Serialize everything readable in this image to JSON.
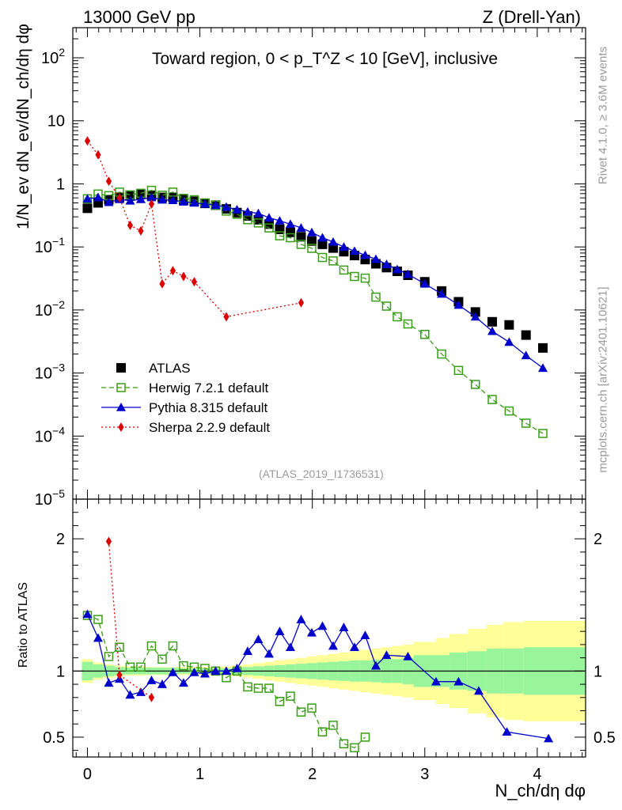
{
  "header": {
    "energy_label": "13000 GeV pp",
    "process_label": "Z (Drell-Yan)",
    "rivet_label": "Rivet 4.1.0, ≥ 3.6M events",
    "site_label": "mcplots.cern.ch [arXiv:2401.10621]",
    "analysis_label": "(ATLAS_2019_I1736531)"
  },
  "chart_data": [
    {
      "type": "scatter",
      "scale": "log",
      "title": "Toward region, 0 < p_T^Z < 10 [GeV], inclusive",
      "ylabel": "1/N_ev dN_ev/dN_ch/dη dφ",
      "xlabel": "",
      "xlim": [
        -0.13,
        4.43
      ],
      "ylim": [
        1e-05,
        300
      ],
      "x_ticks": [
        0,
        1,
        2,
        3,
        4
      ],
      "y_tick_labels": [
        "10^-5",
        "10^-4",
        "10^-3",
        "10^-2",
        "10^-1",
        "1",
        "10",
        "10^2"
      ],
      "legend_position": "left",
      "series": [
        {
          "name": "ATLAS",
          "color": "#000000",
          "marker": "square-filled",
          "x": [
            0,
            0.095,
            0.19,
            0.285,
            0.38,
            0.475,
            0.57,
            0.665,
            0.76,
            0.855,
            0.95,
            1.045,
            1.14,
            1.235,
            1.33,
            1.425,
            1.52,
            1.615,
            1.71,
            1.805,
            1.9,
            1.995,
            2.09,
            2.185,
            2.28,
            2.375,
            2.47,
            2.565,
            2.66,
            2.755,
            2.85,
            3.0,
            3.15,
            3.3,
            3.45,
            3.6,
            3.75,
            3.9,
            4.05
          ],
          "y": [
            0.41,
            0.5,
            0.56,
            0.61,
            0.66,
            0.68,
            0.66,
            0.61,
            0.61,
            0.56,
            0.53,
            0.49,
            0.46,
            0.4,
            0.35,
            0.31,
            0.27,
            0.23,
            0.19,
            0.17,
            0.145,
            0.124,
            0.11,
            0.096,
            0.084,
            0.073,
            0.063,
            0.054,
            0.047,
            0.041,
            0.0355,
            0.028,
            0.02,
            0.0135,
            0.0093,
            0.0065,
            0.0058,
            0.004,
            0.0025
          ]
        },
        {
          "name": "Herwig 7.2.1 default",
          "color": "#3a9c16",
          "marker": "square-open",
          "line": "dashed",
          "x": [
            0,
            0.095,
            0.19,
            0.285,
            0.38,
            0.475,
            0.57,
            0.665,
            0.76,
            0.855,
            0.95,
            1.045,
            1.14,
            1.235,
            1.33,
            1.425,
            1.52,
            1.615,
            1.71,
            1.805,
            1.9,
            1.995,
            2.09,
            2.185,
            2.28,
            2.375,
            2.47,
            2.565,
            2.66,
            2.755,
            2.85,
            3.0,
            3.15,
            3.3,
            3.45,
            3.6,
            3.75,
            3.9,
            4.05
          ],
          "y": [
            0.58,
            0.69,
            0.65,
            0.74,
            0.67,
            0.71,
            0.79,
            0.66,
            0.74,
            0.59,
            0.56,
            0.5,
            0.46,
            0.37,
            0.33,
            0.27,
            0.24,
            0.2,
            0.15,
            0.14,
            0.11,
            0.095,
            0.068,
            0.06,
            0.043,
            0.034,
            0.032,
            0.016,
            0.0115,
            0.0078,
            0.006,
            0.0041,
            0.002,
            0.0011,
            0.00066,
            0.00038,
            0.00025,
            0.00016,
            0.00011
          ]
        },
        {
          "name": "Pythia 8.315 default",
          "color": "#0000cc",
          "marker": "triangle-filled",
          "line": "solid",
          "x": [
            0,
            0.095,
            0.19,
            0.285,
            0.38,
            0.475,
            0.57,
            0.665,
            0.76,
            0.855,
            0.95,
            1.045,
            1.14,
            1.235,
            1.33,
            1.425,
            1.52,
            1.615,
            1.71,
            1.805,
            1.9,
            1.995,
            2.09,
            2.185,
            2.28,
            2.375,
            2.47,
            2.565,
            2.66,
            2.755,
            2.85,
            3.0,
            3.15,
            3.3,
            3.45,
            3.6,
            3.75,
            3.9,
            4.05
          ],
          "y": [
            0.58,
            0.61,
            0.51,
            0.57,
            0.54,
            0.57,
            0.61,
            0.56,
            0.55,
            0.52,
            0.5,
            0.48,
            0.46,
            0.43,
            0.39,
            0.36,
            0.34,
            0.29,
            0.26,
            0.23,
            0.2,
            0.17,
            0.14,
            0.12,
            0.1,
            0.086,
            0.074,
            0.064,
            0.053,
            0.044,
            0.037,
            0.026,
            0.018,
            0.012,
            0.0078,
            0.0046,
            0.0031,
            0.0019,
            0.0012
          ]
        },
        {
          "name": "Sherpa 2.2.9 default",
          "color": "#dd0000",
          "marker": "diamond-filled",
          "line": "dotted",
          "x": [
            0,
            0.095,
            0.19,
            0.285,
            0.38,
            0.475,
            0.57,
            0.665,
            0.76,
            0.855,
            0.95,
            1.235,
            1.9
          ],
          "y": [
            4.8,
            2.9,
            1.1,
            0.6,
            0.22,
            0.18,
            0.48,
            0.026,
            0.042,
            0.034,
            0.028,
            0.0078,
            0.013
          ]
        }
      ]
    },
    {
      "type": "scatter",
      "title": "",
      "ylabel": "Ratio to ATLAS",
      "xlabel": "N_ch/dη dφ",
      "xlim": [
        -0.13,
        4.43
      ],
      "ylim": [
        0.35,
        2.3
      ],
      "x_ticks": [
        0,
        1,
        2,
        3,
        4
      ],
      "x_tick_labels": [
        "0",
        "1",
        "2",
        "3",
        "4"
      ],
      "y_ticks": [
        0.5,
        1,
        2
      ],
      "y_tick_labels": [
        "0.5",
        "1",
        "2"
      ],
      "band_edges": [
        -0.05,
        0.05,
        0.14,
        0.24,
        0.33,
        0.43,
        0.52,
        0.62,
        0.71,
        0.81,
        0.9,
        1.0,
        1.09,
        1.19,
        1.28,
        1.38,
        1.47,
        1.57,
        1.66,
        1.76,
        1.85,
        1.95,
        2.04,
        2.14,
        2.23,
        2.33,
        2.42,
        2.52,
        2.61,
        2.71,
        2.8,
        2.9,
        3.1,
        3.22,
        3.38,
        3.55,
        3.7,
        3.88,
        4.05,
        4.43
      ],
      "band_stat": [
        0.07,
        0.05,
        0.04,
        0.03,
        0.025,
        0.025,
        0.025,
        0.025,
        0.025,
        0.02,
        0.02,
        0.02,
        0.02,
        0.02,
        0.025,
        0.03,
        0.035,
        0.04,
        0.045,
        0.05,
        0.055,
        0.06,
        0.065,
        0.07,
        0.075,
        0.08,
        0.08,
        0.085,
        0.09,
        0.09,
        0.1,
        0.12,
        0.12,
        0.14,
        0.15,
        0.17,
        0.17,
        0.18,
        0.18
      ],
      "band_total": [
        0.09,
        0.065,
        0.05,
        0.04,
        0.035,
        0.035,
        0.03,
        0.03,
        0.03,
        0.03,
        0.03,
        0.03,
        0.03,
        0.035,
        0.04,
        0.05,
        0.06,
        0.07,
        0.08,
        0.09,
        0.1,
        0.11,
        0.12,
        0.13,
        0.14,
        0.15,
        0.16,
        0.17,
        0.18,
        0.19,
        0.2,
        0.22,
        0.25,
        0.28,
        0.32,
        0.35,
        0.37,
        0.38,
        0.38
      ],
      "series": [
        {
          "name": "Herwig 7.2.1 default",
          "color": "#3a9c16",
          "x": [
            0,
            0.095,
            0.19,
            0.285,
            0.38,
            0.475,
            0.57,
            0.665,
            0.76,
            0.855,
            0.95,
            1.045,
            1.14,
            1.235,
            1.33,
            1.425,
            1.52,
            1.615,
            1.71,
            1.805,
            1.9,
            1.995,
            2.09,
            2.185,
            2.28,
            2.375,
            2.47
          ],
          "y": [
            1.42,
            1.39,
            1.11,
            1.18,
            1.03,
            1.03,
            1.19,
            1.09,
            1.19,
            1.04,
            1.03,
            1.02,
            1.0,
            0.95,
            1.0,
            0.88,
            0.87,
            0.87,
            0.77,
            0.81,
            0.69,
            0.72,
            0.54,
            0.59,
            0.45,
            0.42,
            0.5
          ]
        },
        {
          "name": "Pythia 8.315 default",
          "color": "#0000cc",
          "x": [
            0,
            0.095,
            0.19,
            0.285,
            0.38,
            0.475,
            0.57,
            0.665,
            0.76,
            0.855,
            0.95,
            1.045,
            1.14,
            1.235,
            1.33,
            1.425,
            1.52,
            1.615,
            1.71,
            1.805,
            1.9,
            1.995,
            2.09,
            2.185,
            2.28,
            2.375,
            2.47,
            2.565,
            2.66,
            2.85,
            3.1,
            3.3,
            3.48,
            3.73,
            4.1
          ],
          "y": [
            1.43,
            1.25,
            0.91,
            0.94,
            0.82,
            0.84,
            0.93,
            0.9,
            0.99,
            0.91,
            0.99,
            0.98,
            1.0,
            1.0,
            1.02,
            1.15,
            1.24,
            1.13,
            1.3,
            1.18,
            1.39,
            1.29,
            1.34,
            1.19,
            1.33,
            1.18,
            1.27,
            1.04,
            1.12,
            1.11,
            0.92,
            0.92,
            0.85,
            0.54,
            0.49
          ]
        },
        {
          "name": "Sherpa 2.2.9 default",
          "color": "#dd0000",
          "x": [
            0.19,
            0.285,
            0.57
          ],
          "y": [
            1.98,
            0.97,
            0.8
          ]
        }
      ]
    }
  ]
}
